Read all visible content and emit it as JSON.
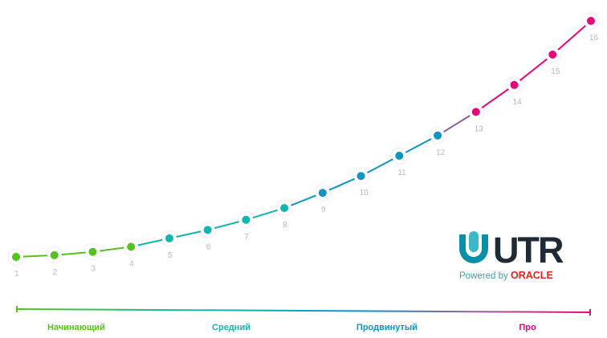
{
  "chart_data": {
    "type": "line",
    "x": [
      1,
      2,
      3,
      4,
      5,
      6,
      7,
      8,
      9,
      10,
      11,
      12,
      13,
      14,
      15,
      16
    ],
    "values": [
      1.0,
      1.1,
      1.3,
      1.6,
      2.1,
      2.6,
      3.2,
      3.9,
      4.8,
      5.8,
      7.0,
      8.2,
      9.6,
      11.2,
      13.0,
      15.0
    ],
    "point_labels": [
      "1",
      "2",
      "3",
      "4",
      "5",
      "6",
      "7",
      "8",
      "9",
      "10",
      "11",
      "12",
      "13",
      "14",
      "15",
      "16"
    ],
    "ylim": [
      0,
      16
    ],
    "grid": false,
    "levels": [
      {
        "label": "Начинающий",
        "color": "#52c41a",
        "from": 1,
        "to": 4
      },
      {
        "label": "Средний",
        "color": "#13b5b0",
        "from": 5,
        "to": 8
      },
      {
        "label": "Продвинутый",
        "color": "#0e95c2",
        "from": 9,
        "to": 12
      },
      {
        "label": "Про",
        "color": "#e6077a",
        "from": 13,
        "to": 16
      }
    ]
  },
  "logo": {
    "text": "UTR",
    "tagline": "Powered by",
    "brand": "ORACLE",
    "colors": {
      "mark": "#0a8fa8",
      "text": "#1e2a35",
      "brand": "#e2231a",
      "tagline": "#3d9fb5"
    }
  },
  "colors": {
    "green": "#52c41a",
    "teal": "#13b5b0",
    "blue": "#0e95c2",
    "magenta": "#e6077a",
    "purple": "#8a5fa0",
    "label": "#b9b9b9"
  }
}
